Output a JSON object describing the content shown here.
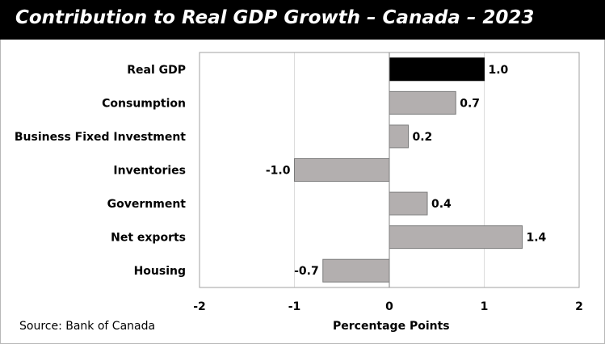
{
  "chart_data": {
    "type": "bar",
    "orientation": "horizontal",
    "title": "Contribution to Real GDP Growth – Canada – 2023",
    "categories": [
      "Real GDP",
      "Consumption",
      "Business Fixed Investment",
      "Inventories",
      "Government",
      "Net exports",
      "Housing"
    ],
    "values": [
      1.0,
      0.7,
      0.2,
      -1.0,
      0.4,
      1.4,
      -0.7
    ],
    "value_labels": [
      "1.0",
      "0.7",
      "0.2",
      "-1.0",
      "0.4",
      "1.4",
      "-0.7"
    ],
    "highlight_category": "Real GDP",
    "xlabel": "Percentage Points",
    "ylabel": "",
    "xlim": [
      -2,
      2
    ],
    "x_ticks": [
      -2,
      -1,
      0,
      1,
      2
    ],
    "x_tick_labels": [
      "-2",
      "-1",
      "0",
      "1",
      "2"
    ],
    "grid": "vertical",
    "legend": "none",
    "source": "Source: Bank of Canada",
    "colors": {
      "highlight": "#000000",
      "bar": "#b3afaf",
      "bar_outline": "#7a7a7a",
      "grid": "#dcdcdc",
      "title_bg": "#000000",
      "title_text": "#ffffff"
    }
  }
}
